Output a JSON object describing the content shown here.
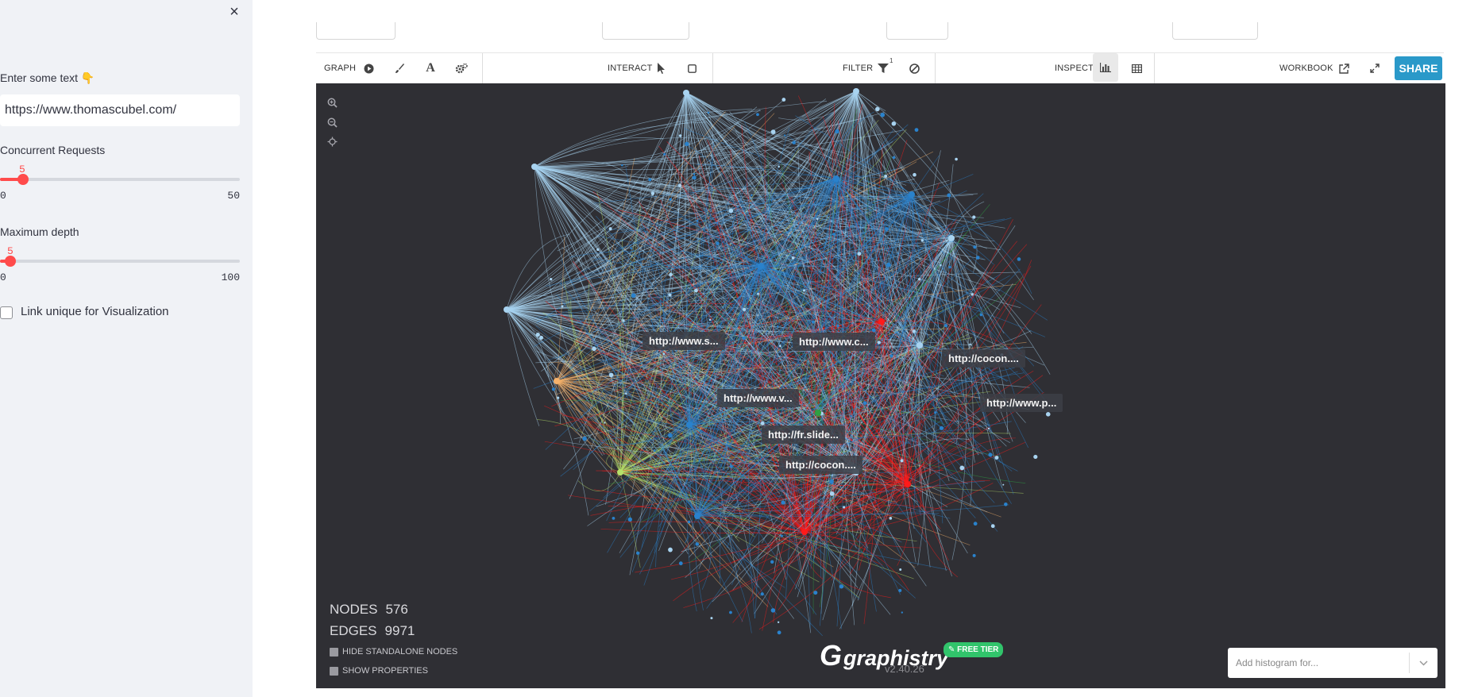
{
  "sidebar": {
    "close_icon": "×",
    "text_label": "Enter some text 👇",
    "text_value": "https://www.thomascubel.com/",
    "concurrent": {
      "label": "Concurrent Requests",
      "value": "5",
      "min": "0",
      "max": "50",
      "fraction": 0.1
    },
    "depth": {
      "label": "Maximum depth",
      "value": "5",
      "min": "0",
      "max": "100",
      "fraction": 0.05
    },
    "checkbox_label": "Link unique for Visualization"
  },
  "toolbar": {
    "graph": "GRAPH",
    "interact": "INTERACT",
    "filter": "FILTER",
    "filter_badge": "1",
    "inspect": "INSPECT",
    "workbook": "WORKBOOK",
    "share": "SHARE"
  },
  "graph": {
    "labels": [
      "http://www.s...",
      "http://www.c...",
      "http://cocon....",
      "http://www.v...",
      "http://www.p...",
      "http://fr.slide...",
      "http://cocon...."
    ],
    "nodes_label": "NODES",
    "nodes_value": "576",
    "edges_label": "EDGES",
    "edges_value": "9971",
    "hide_standalone": "HIDE STANDALONE NODES",
    "show_properties": "SHOW PROPERTIES",
    "logo": "graphistry",
    "logo_mark": "G",
    "free_tier": "✎ FREE TIER",
    "version": "v2.40.26",
    "histogram_placeholder": "Add histogram for..."
  },
  "colors": {
    "accent": "#ff4b4b",
    "share": "#2a99c9",
    "canvas_bg": "#2f2f34",
    "edge_light": "#a8d3f0",
    "edge_dark": "#2a82cc",
    "edge_red": "#ff1a1a",
    "edge_orange": "#f6b26b",
    "edge_green": "#b6e06a",
    "edge_darkgreen": "#2ea043"
  }
}
